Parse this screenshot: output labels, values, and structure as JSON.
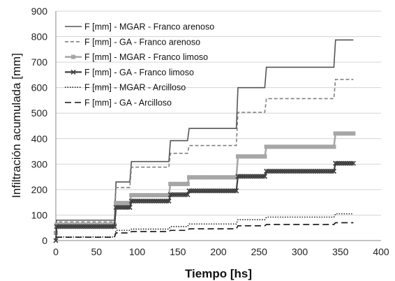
{
  "chart_data": {
    "type": "line",
    "title": "",
    "xlabel": "Tiempo [hs]",
    "ylabel": "Infiltración acumulada [mm]",
    "xlim": [
      0,
      400
    ],
    "ylim": [
      0,
      900
    ],
    "x_ticks": [
      0,
      50,
      100,
      150,
      200,
      250,
      300,
      350,
      400
    ],
    "y_ticks": [
      0,
      100,
      200,
      300,
      400,
      500,
      600,
      700,
      800,
      900
    ],
    "grid": "horizontal",
    "legend_position": "top-left",
    "series": [
      {
        "name": "F [mm] - MGAR - Franco arenoso",
        "color": "#555555",
        "style": "solid",
        "marker": "none",
        "points": [
          [
            0,
            42
          ],
          [
            1,
            80
          ],
          [
            72,
            80
          ],
          [
            74,
            230
          ],
          [
            91,
            230
          ],
          [
            93,
            310
          ],
          [
            139,
            310
          ],
          [
            141,
            392
          ],
          [
            162,
            392
          ],
          [
            164,
            440
          ],
          [
            222,
            440
          ],
          [
            224,
            600
          ],
          [
            257,
            600
          ],
          [
            259,
            680
          ],
          [
            342,
            680
          ],
          [
            344,
            787
          ],
          [
            366,
            787
          ]
        ]
      },
      {
        "name": "F [mm] - GA - Franco arenoso",
        "color": "#808080",
        "style": "dashed",
        "marker": "none",
        "points": [
          [
            0,
            38
          ],
          [
            1,
            73
          ],
          [
            72,
            73
          ],
          [
            74,
            208
          ],
          [
            91,
            208
          ],
          [
            93,
            288
          ],
          [
            139,
            288
          ],
          [
            141,
            342
          ],
          [
            162,
            342
          ],
          [
            164,
            373
          ],
          [
            222,
            373
          ],
          [
            224,
            503
          ],
          [
            257,
            503
          ],
          [
            259,
            557
          ],
          [
            342,
            557
          ],
          [
            344,
            632
          ],
          [
            366,
            632
          ]
        ]
      },
      {
        "name": "F [mm] - MGAR - Franco limoso",
        "color": "#a6a6a6",
        "style": "solid",
        "marker": "square",
        "points": [
          [
            0,
            30
          ],
          [
            1,
            62
          ],
          [
            72,
            62
          ],
          [
            74,
            147
          ],
          [
            91,
            147
          ],
          [
            93,
            178
          ],
          [
            139,
            178
          ],
          [
            141,
            222
          ],
          [
            162,
            222
          ],
          [
            164,
            248
          ],
          [
            222,
            248
          ],
          [
            224,
            330
          ],
          [
            257,
            330
          ],
          [
            259,
            368
          ],
          [
            342,
            368
          ],
          [
            344,
            420
          ],
          [
            366,
            420
          ]
        ]
      },
      {
        "name": "F [mm] - GA - Franco limoso",
        "color": "#404040",
        "style": "solid",
        "marker": "x",
        "points": [
          [
            0,
            0
          ],
          [
            1,
            55
          ],
          [
            72,
            55
          ],
          [
            74,
            130
          ],
          [
            91,
            130
          ],
          [
            93,
            155
          ],
          [
            139,
            155
          ],
          [
            141,
            180
          ],
          [
            162,
            180
          ],
          [
            164,
            195
          ],
          [
            222,
            195
          ],
          [
            224,
            252
          ],
          [
            257,
            252
          ],
          [
            259,
            272
          ],
          [
            342,
            272
          ],
          [
            344,
            303
          ],
          [
            366,
            303
          ]
        ]
      },
      {
        "name": "F [mm] - MGAR - Arcilloso",
        "color": "#222222",
        "style": "dotted",
        "marker": "none",
        "points": [
          [
            0,
            14
          ],
          [
            1,
            14
          ],
          [
            72,
            14
          ],
          [
            74,
            40
          ],
          [
            91,
            40
          ],
          [
            93,
            45
          ],
          [
            139,
            45
          ],
          [
            141,
            55
          ],
          [
            162,
            55
          ],
          [
            164,
            65
          ],
          [
            222,
            65
          ],
          [
            224,
            82
          ],
          [
            257,
            82
          ],
          [
            259,
            92
          ],
          [
            342,
            92
          ],
          [
            344,
            105
          ],
          [
            366,
            105
          ]
        ]
      },
      {
        "name": "F [mm] - GA - Arcilloso",
        "color": "#111111",
        "style": "longdash",
        "marker": "none",
        "points": [
          [
            0,
            13
          ],
          [
            1,
            13
          ],
          [
            72,
            13
          ],
          [
            74,
            30
          ],
          [
            91,
            30
          ],
          [
            93,
            35
          ],
          [
            139,
            35
          ],
          [
            141,
            40
          ],
          [
            162,
            40
          ],
          [
            164,
            46
          ],
          [
            222,
            46
          ],
          [
            224,
            58
          ],
          [
            257,
            58
          ],
          [
            259,
            63
          ],
          [
            342,
            63
          ],
          [
            344,
            70
          ],
          [
            366,
            70
          ]
        ]
      }
    ]
  }
}
